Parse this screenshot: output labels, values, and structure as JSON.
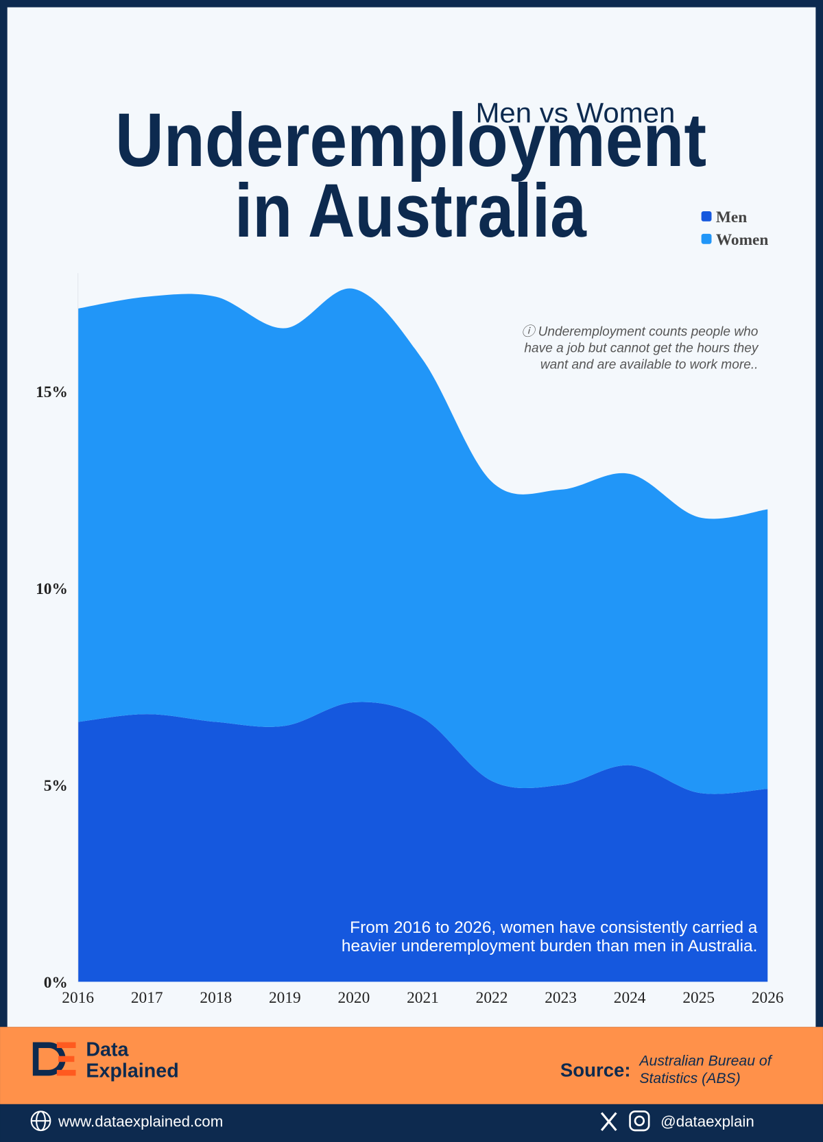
{
  "chart_data": {
    "type": "stacked-area",
    "title": [
      "Underemployment",
      "in Australia"
    ],
    "subtitle": "Men vs Women",
    "x": [
      2016,
      2017,
      2018,
      2019,
      2020,
      2021,
      2022,
      2023,
      2024,
      2025,
      2026
    ],
    "xlim": [
      2016,
      2026
    ],
    "xticks": [
      2016,
      2017,
      2018,
      2019,
      2020,
      2021,
      2022,
      2023,
      2024,
      2025,
      2026
    ],
    "ylim": [
      0,
      18
    ],
    "yticks": [
      {
        "value": 0,
        "label": "0%"
      },
      {
        "value": 5,
        "label": "5%"
      },
      {
        "value": 10,
        "label": "10%"
      },
      {
        "value": 15,
        "label": "15%"
      }
    ],
    "grid": false,
    "legend": "top-right",
    "series": [
      {
        "name": "Men",
        "color": "#1558de",
        "values": [
          6.6,
          6.8,
          6.6,
          6.5,
          7.1,
          6.7,
          5.1,
          5.0,
          5.5,
          4.8,
          4.9
        ]
      },
      {
        "name": "Women",
        "color": "#2196f8",
        "values": [
          10.5,
          10.6,
          10.8,
          10.1,
          10.5,
          9.1,
          7.6,
          7.5,
          7.4,
          7.0,
          7.1
        ]
      }
    ],
    "annotations": {
      "note": [
        "ⓘ Underemployment counts people who",
        "have a job but cannot get the hours they",
        "want and are available to work more.."
      ],
      "summary": [
        "From 2016 to 2026, women have consistently carried a",
        "heavier underemployment burden than men in Australia."
      ]
    }
  },
  "footer": {
    "brand": [
      "Data",
      "Explained"
    ],
    "source_label": "Source:",
    "source": [
      "Australian Bureau of",
      "Statistics (ABS)"
    ],
    "website": "www.dataexplained.com",
    "handle": "@dataexplain"
  }
}
